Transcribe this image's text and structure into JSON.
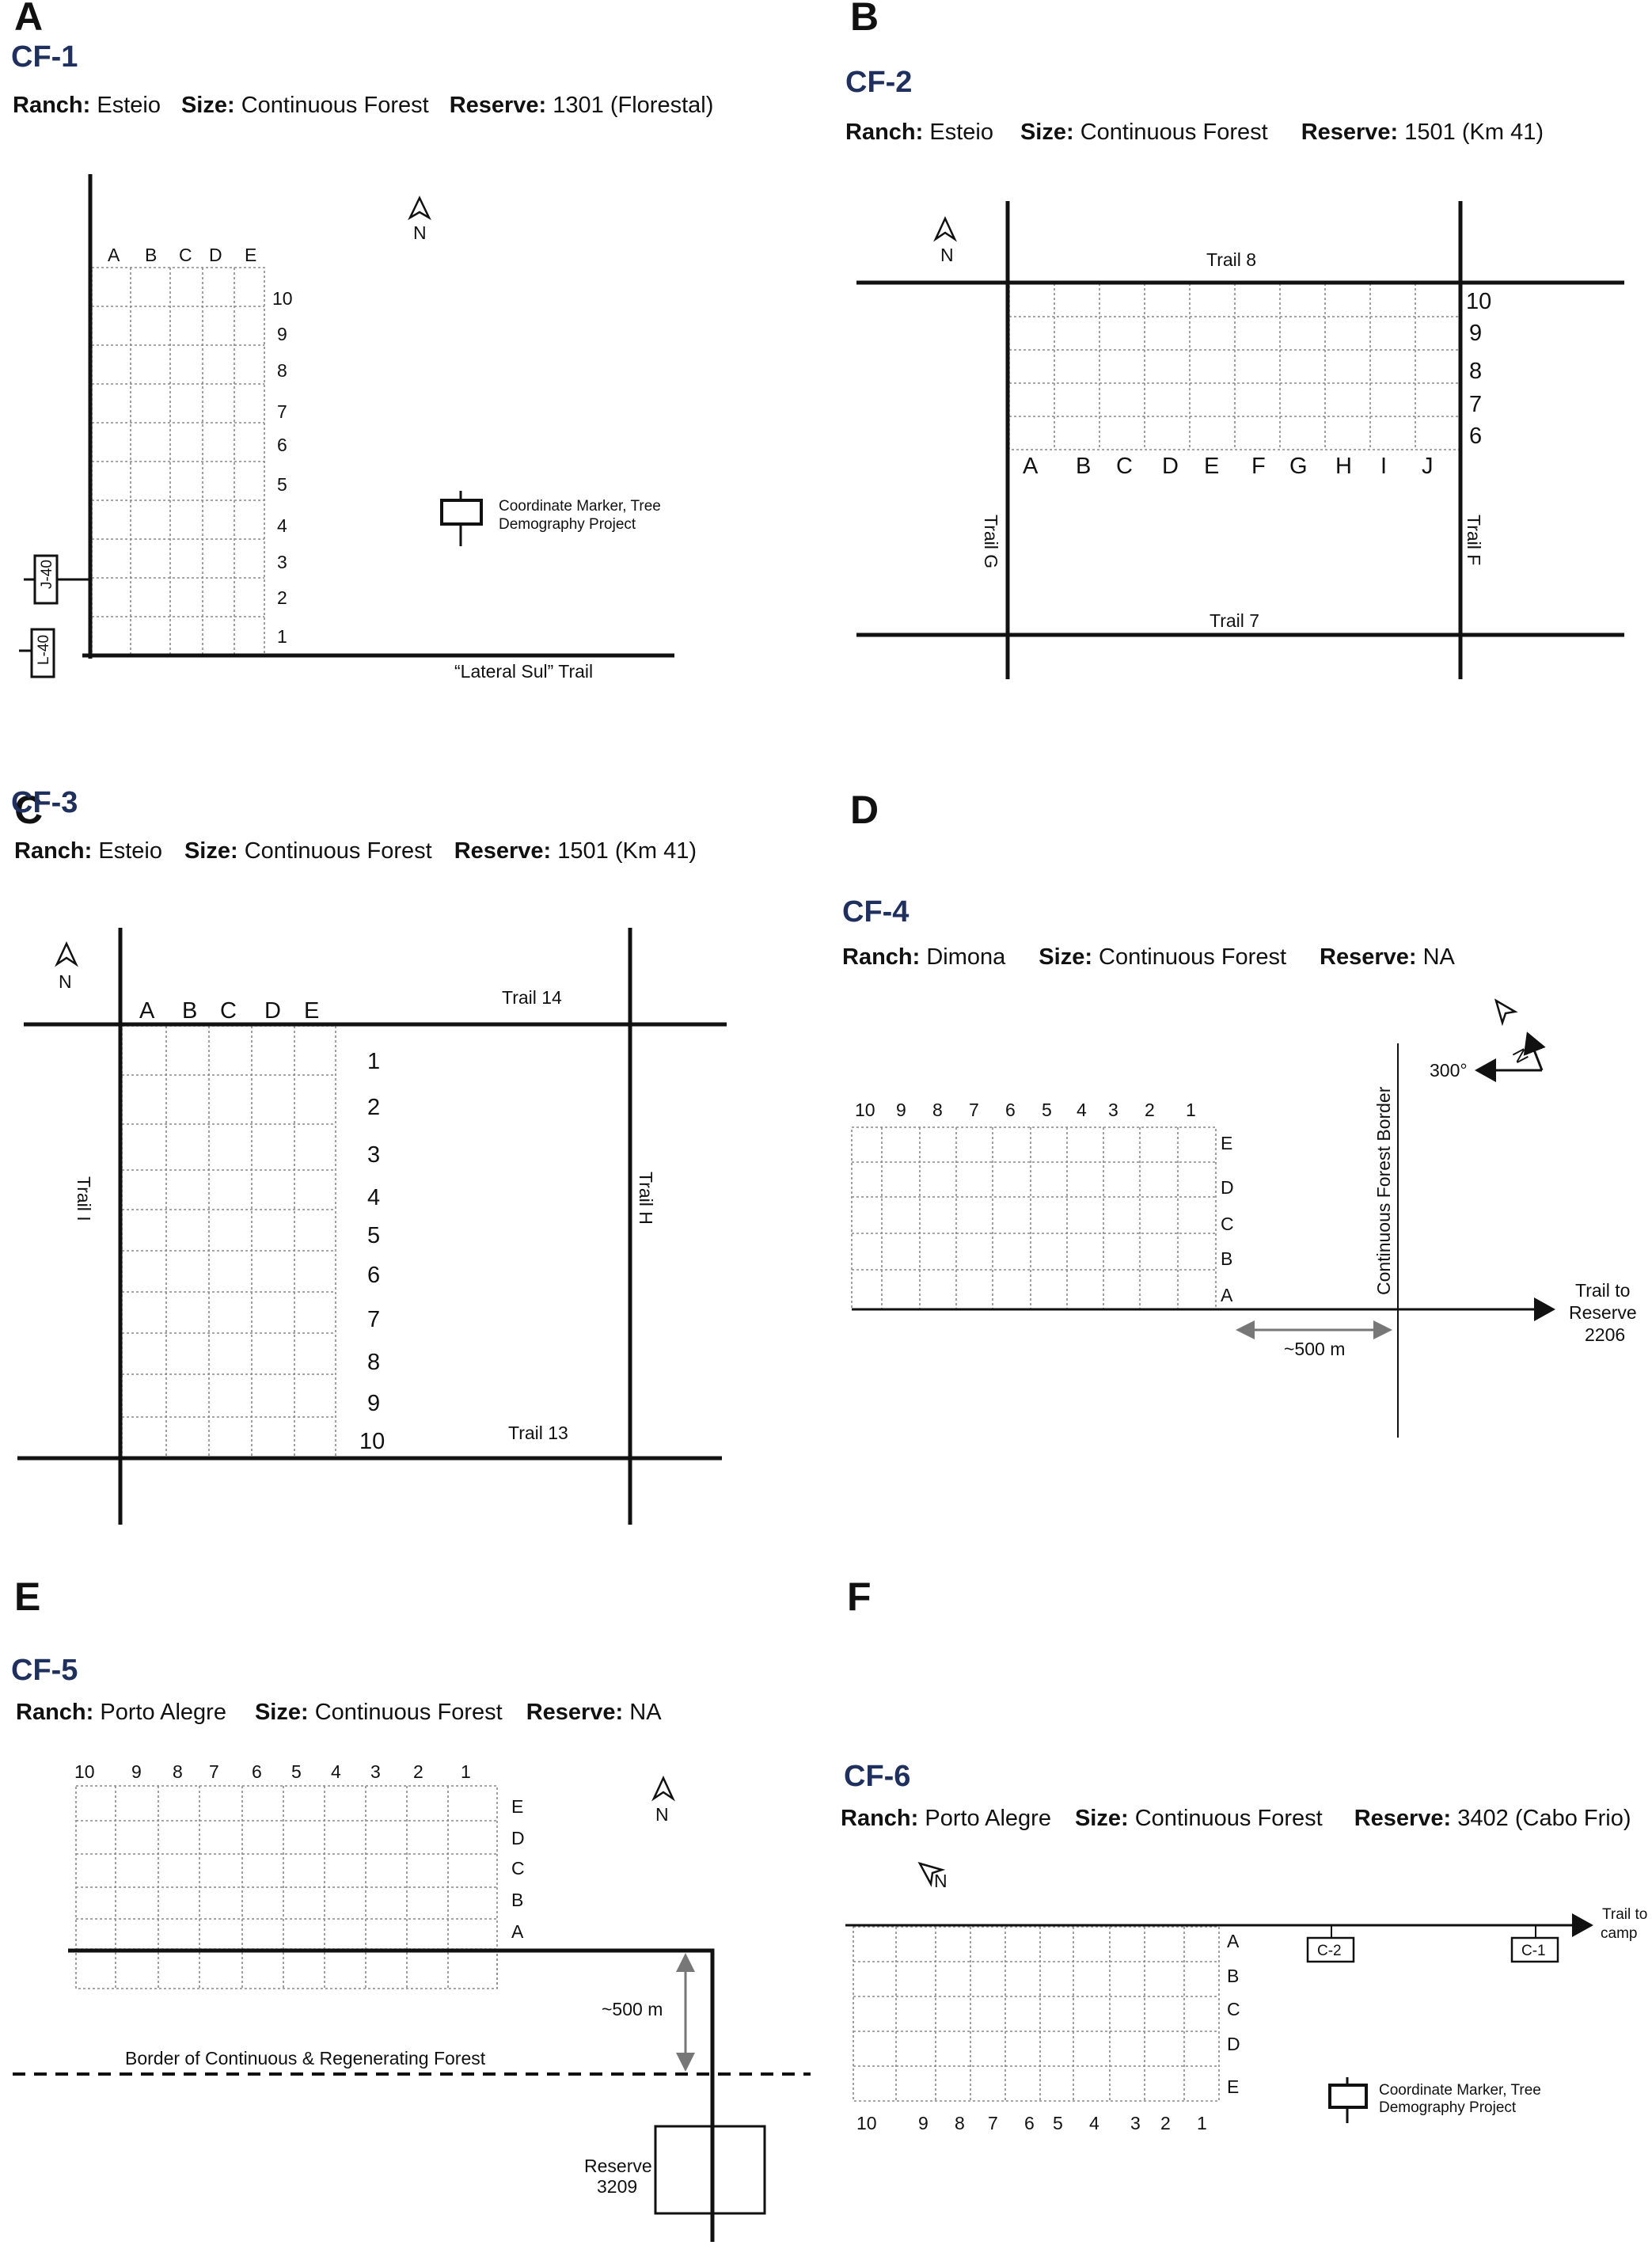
{
  "header_labels": {
    "ranch": "Ranch:",
    "size": "Size:",
    "reserve": "Reserve:"
  },
  "colors": {
    "title": "#1f2f5e",
    "line": "#111111",
    "grid": "#888888",
    "arrow": "#777777"
  },
  "north": "N",
  "panels": {
    "A": {
      "letter": "A",
      "title": "CF-1",
      "ranch": "Esteio",
      "size": "Continuous Forest",
      "reserve": "1301 (Florestal)",
      "cols": [
        "A",
        "B",
        "C",
        "D",
        "E"
      ],
      "rows": [
        "10",
        "9",
        "8",
        "7",
        "6",
        "5",
        "4",
        "3",
        "2",
        "1"
      ],
      "legend": [
        "Coordinate Marker, Tree",
        "Demography Project"
      ],
      "markers": [
        "J-40",
        "L-40"
      ],
      "trail": "“Lateral Sul” Trail"
    },
    "B": {
      "letter": "B",
      "title": "CF-2",
      "ranch": "Esteio",
      "size": "Continuous Forest",
      "reserve": "1501 (Km 41)",
      "cols": [
        "A",
        "B",
        "C",
        "D",
        "E",
        "F",
        "G",
        "H",
        "I",
        "J"
      ],
      "rows": [
        "10",
        "9",
        "8",
        "7",
        "6"
      ],
      "trail_top": "Trail 8",
      "trail_bottom": "Trail 7",
      "trail_left": "Trail G",
      "trail_right": "Trail F"
    },
    "C": {
      "letter": "C",
      "title": "CF-3",
      "ranch": "Esteio",
      "size": "Continuous Forest",
      "reserve": "1501 (Km 41)",
      "cols": [
        "A",
        "B",
        "C",
        "D",
        "E"
      ],
      "rows": [
        "1",
        "2",
        "3",
        "4",
        "5",
        "6",
        "7",
        "8",
        "9",
        "10"
      ],
      "trail_top": "Trail 14",
      "trail_bottom": "Trail 13",
      "trail_left": "Trail I",
      "trail_right": "Trail H"
    },
    "D": {
      "letter": "D",
      "title": "CF-4",
      "ranch": "Dimona",
      "size": "Continuous Forest",
      "reserve": "NA",
      "cols": [
        "10",
        "9",
        "8",
        "7",
        "6",
        "5",
        "4",
        "3",
        "2",
        "1"
      ],
      "rows": [
        "E",
        "D",
        "C",
        "B",
        "A"
      ],
      "bearing": "300°",
      "border": "Continuous Forest Border",
      "distance": "~500 m",
      "trail": [
        "Trail to",
        "Reserve",
        "2206"
      ]
    },
    "E": {
      "letter": "E",
      "title": "CF-5",
      "ranch": "Porto Alegre",
      "size": "Continuous Forest",
      "reserve": "NA",
      "cols": [
        "10",
        "9",
        "8",
        "7",
        "6",
        "5",
        "4",
        "3",
        "2",
        "1"
      ],
      "rows": [
        "E",
        "D",
        "C",
        "B",
        "A"
      ],
      "distance": "~500 m",
      "border": "Border of Continuous & Regenerating Forest",
      "reserve_box": [
        "Reserve",
        "3209"
      ]
    },
    "F": {
      "letter": "F",
      "title": "CF-6",
      "ranch": "Porto Alegre",
      "size": "Continuous Forest",
      "reserve": "3402 (Cabo Frio)",
      "cols": [
        "10",
        "9",
        "8",
        "7",
        "6",
        "5",
        "4",
        "3",
        "2",
        "1"
      ],
      "rows": [
        "A",
        "B",
        "C",
        "D",
        "E"
      ],
      "markers": [
        "C-2",
        "C-1"
      ],
      "trail": [
        "Trail to",
        "camp"
      ],
      "legend": [
        "Coordinate Marker, Tree",
        "Demography Project"
      ]
    }
  }
}
